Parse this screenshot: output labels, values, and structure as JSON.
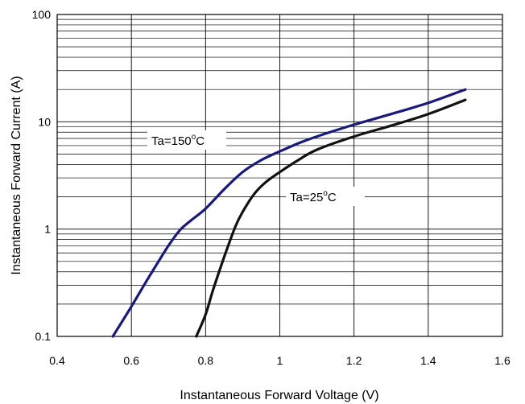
{
  "chart_data": {
    "type": "line",
    "title": "",
    "xlabel": "Instantaneous Forward Voltage (V)",
    "ylabel": "Instantaneous Forward Current (A)",
    "xlim": [
      0.4,
      1.6
    ],
    "ylim": [
      0.1,
      100
    ],
    "yscale": "log",
    "grid": true,
    "x_ticks": [
      "0.4",
      "0.6",
      "0.8",
      "1",
      "1.2",
      "1.4",
      "1.6"
    ],
    "y_ticks": [
      "0.1",
      "1",
      "10",
      "100"
    ],
    "series": [
      {
        "name": "Ta=150°C",
        "color": "#1a1a7a",
        "points": [
          [
            0.55,
            0.1
          ],
          [
            0.6,
            0.19
          ],
          [
            0.65,
            0.37
          ],
          [
            0.7,
            0.7
          ],
          [
            0.73,
            0.97
          ],
          [
            0.76,
            1.2
          ],
          [
            0.8,
            1.55
          ],
          [
            0.85,
            2.35
          ],
          [
            0.9,
            3.4
          ],
          [
            0.95,
            4.4
          ],
          [
            1.0,
            5.3
          ],
          [
            1.05,
            6.3
          ],
          [
            1.1,
            7.3
          ],
          [
            1.2,
            9.4
          ],
          [
            1.3,
            11.8
          ],
          [
            1.4,
            15.0
          ],
          [
            1.5,
            20.0
          ]
        ]
      },
      {
        "name": "Ta=25°C",
        "color": "#111111",
        "points": [
          [
            0.775,
            0.1
          ],
          [
            0.8,
            0.16
          ],
          [
            0.82,
            0.27
          ],
          [
            0.85,
            0.55
          ],
          [
            0.88,
            1.05
          ],
          [
            0.9,
            1.45
          ],
          [
            0.93,
            2.1
          ],
          [
            0.96,
            2.7
          ],
          [
            1.0,
            3.4
          ],
          [
            1.05,
            4.4
          ],
          [
            1.1,
            5.5
          ],
          [
            1.2,
            7.3
          ],
          [
            1.3,
            9.2
          ],
          [
            1.4,
            11.8
          ],
          [
            1.5,
            16.0
          ]
        ]
      }
    ],
    "annotations": [
      {
        "text": "Ta=150",
        "sup": "o",
        "suffix": "C",
        "series": 0
      },
      {
        "text": "Ta=25",
        "sup": "o",
        "suffix": "C",
        "series": 1
      }
    ]
  }
}
